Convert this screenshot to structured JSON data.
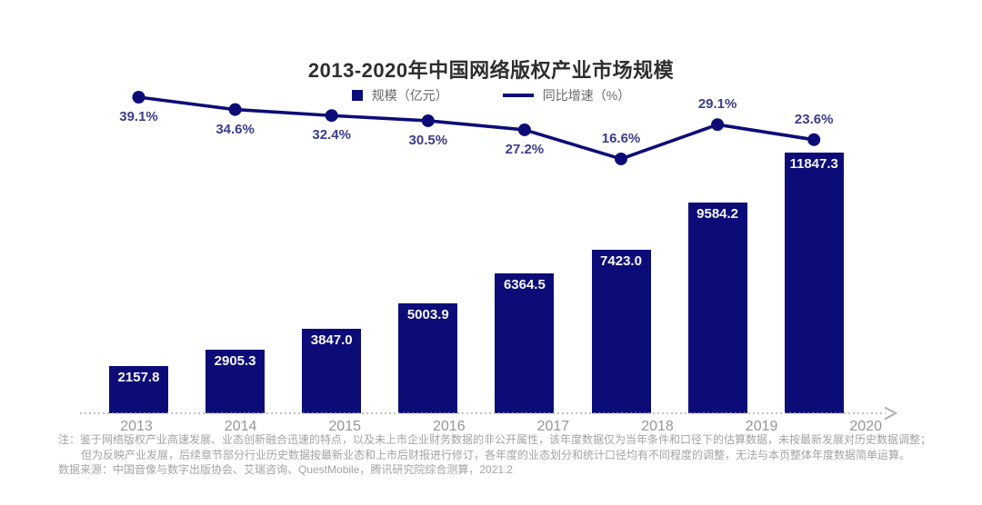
{
  "title": "2013-2020年中国网络版权产业市场规模",
  "legend": {
    "bars": "规模（亿元）",
    "line": "同比增速（%）"
  },
  "chart_data": {
    "type": "bar+line",
    "title": "2013-2020年中国网络版权产业市场规模",
    "categories": [
      "2013",
      "2014",
      "2015",
      "2016",
      "2017",
      "2018",
      "2019",
      "2020"
    ],
    "series": [
      {
        "name": "规模（亿元）",
        "type": "bar",
        "values": [
          2157.8,
          2905.3,
          3847.0,
          5003.9,
          6364.5,
          7423.0,
          9584.2,
          11847.3
        ],
        "labels": [
          "2157.8",
          "2905.3",
          "3847.0",
          "5003.9",
          "6364.5",
          "7423.0",
          "9584.2",
          "11847.3"
        ]
      },
      {
        "name": "同比增速（%）",
        "type": "line",
        "values": [
          39.1,
          34.6,
          32.4,
          30.5,
          27.2,
          16.6,
          29.1,
          23.6
        ],
        "labels": [
          "39.1%",
          "34.6%",
          "32.4%",
          "30.5%",
          "27.2%",
          "16.6%",
          "29.1%",
          "23.6%"
        ],
        "label_positions": [
          "below",
          "below",
          "below",
          "below",
          "below",
          "above",
          "above",
          "above"
        ]
      }
    ],
    "ylabel": "",
    "xlabel": "",
    "y_axis_visible": false,
    "x_axis_style": "dotted-arrow",
    "legend_position": "top-center",
    "grid": false
  },
  "notes": {
    "line1": "注：鉴于网络版权产业高速发展、业态创新融合迅速的特点，以及未上市企业财务数据的非公开属性，该年度数据仅为当年条件和口径下的估算数据，未按最新发展对历史数据调整；",
    "line2": "但为反映产业发展，后续章节部分行业历史数据按最新业态和上市后财报进行修订，各年度的业态划分和统计口径均有不同程度的调整，无法与本页整体年度数据简单运算。",
    "source": "数据来源：中国音像与数字出版协会、艾瑞咨询、QuestMobile，腾讯研究院综合测算，2021.2"
  },
  "colors": {
    "accent": "#0c0c78",
    "pct_label": "#3c3c8c",
    "bar_value_text": "#f7f7f7",
    "title_text": "#2e2e2e",
    "legend_text": "#666666",
    "year_label": "#969696",
    "axis": "#b0b0b0",
    "note_text": "#a3a3a3"
  }
}
